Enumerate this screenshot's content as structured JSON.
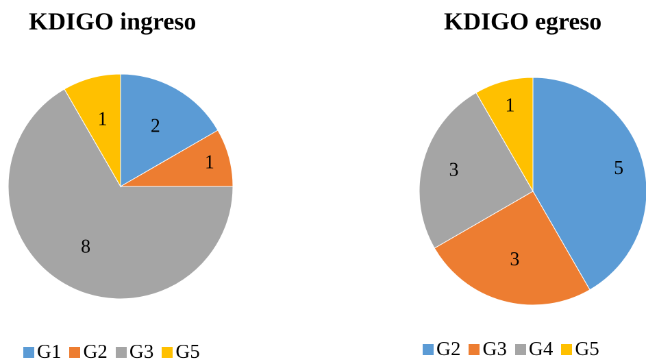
{
  "chart_data": [
    {
      "type": "pie",
      "title": "KDIGO ingreso",
      "categories": [
        "G1",
        "G2",
        "G3",
        "G5"
      ],
      "values": [
        2,
        1,
        8,
        1
      ],
      "colors": [
        "#5B9BD5",
        "#ED7D31",
        "#A5A5A5",
        "#FFC000"
      ],
      "data_labels": [
        "2",
        "1",
        "8",
        "1"
      ],
      "legend": "bottom",
      "start_angle_deg": 0,
      "direction": "clockwise"
    },
    {
      "type": "pie",
      "title": "KDIGO egreso",
      "categories": [
        "G2",
        "G3",
        "G4",
        "G5"
      ],
      "values": [
        5,
        3,
        3,
        1
      ],
      "colors": [
        "#5B9BD5",
        "#ED7D31",
        "#A5A5A5",
        "#FFC000"
      ],
      "data_labels": [
        "5",
        "3",
        "3",
        "1"
      ],
      "legend": "bottom",
      "start_angle_deg": 0,
      "direction": "clockwise"
    }
  ]
}
